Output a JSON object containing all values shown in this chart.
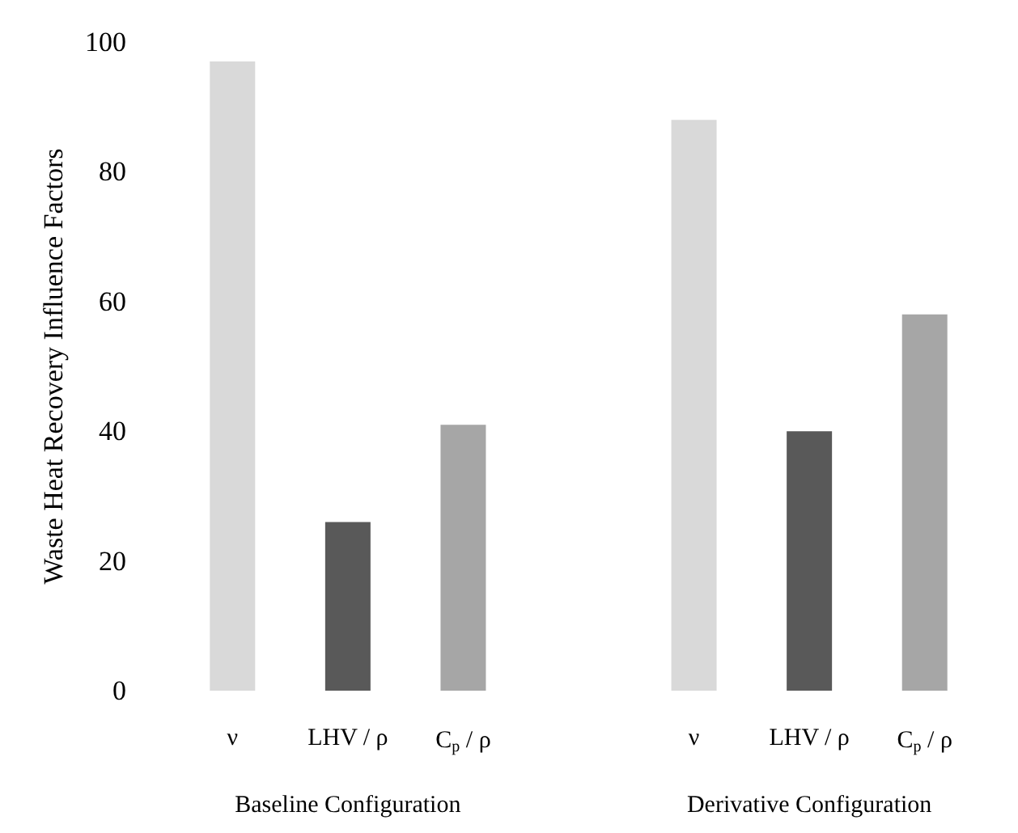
{
  "chart_data": {
    "type": "bar",
    "ylabel": "Waste Heat Recovery Influence Factors",
    "categories": [
      "ν",
      "LHV / ρ",
      "C$_{p}$ / ρ",
      null,
      "ν",
      "LHV / ρ",
      "C$_{p}$ / ρ"
    ],
    "values": [
      97,
      26,
      41,
      null,
      88,
      40,
      58
    ],
    "colors": [
      "#d9d9d9",
      "#595959",
      "#a6a6a6",
      null,
      "#d9d9d9",
      "#595959",
      "#a6a6a6"
    ],
    "ylim": [
      0,
      100
    ],
    "yticks": [
      0,
      20,
      40,
      60,
      80,
      100
    ],
    "grid": false,
    "annotations": [
      "Baseline Configuration",
      "Derivative Configuration"
    ]
  }
}
